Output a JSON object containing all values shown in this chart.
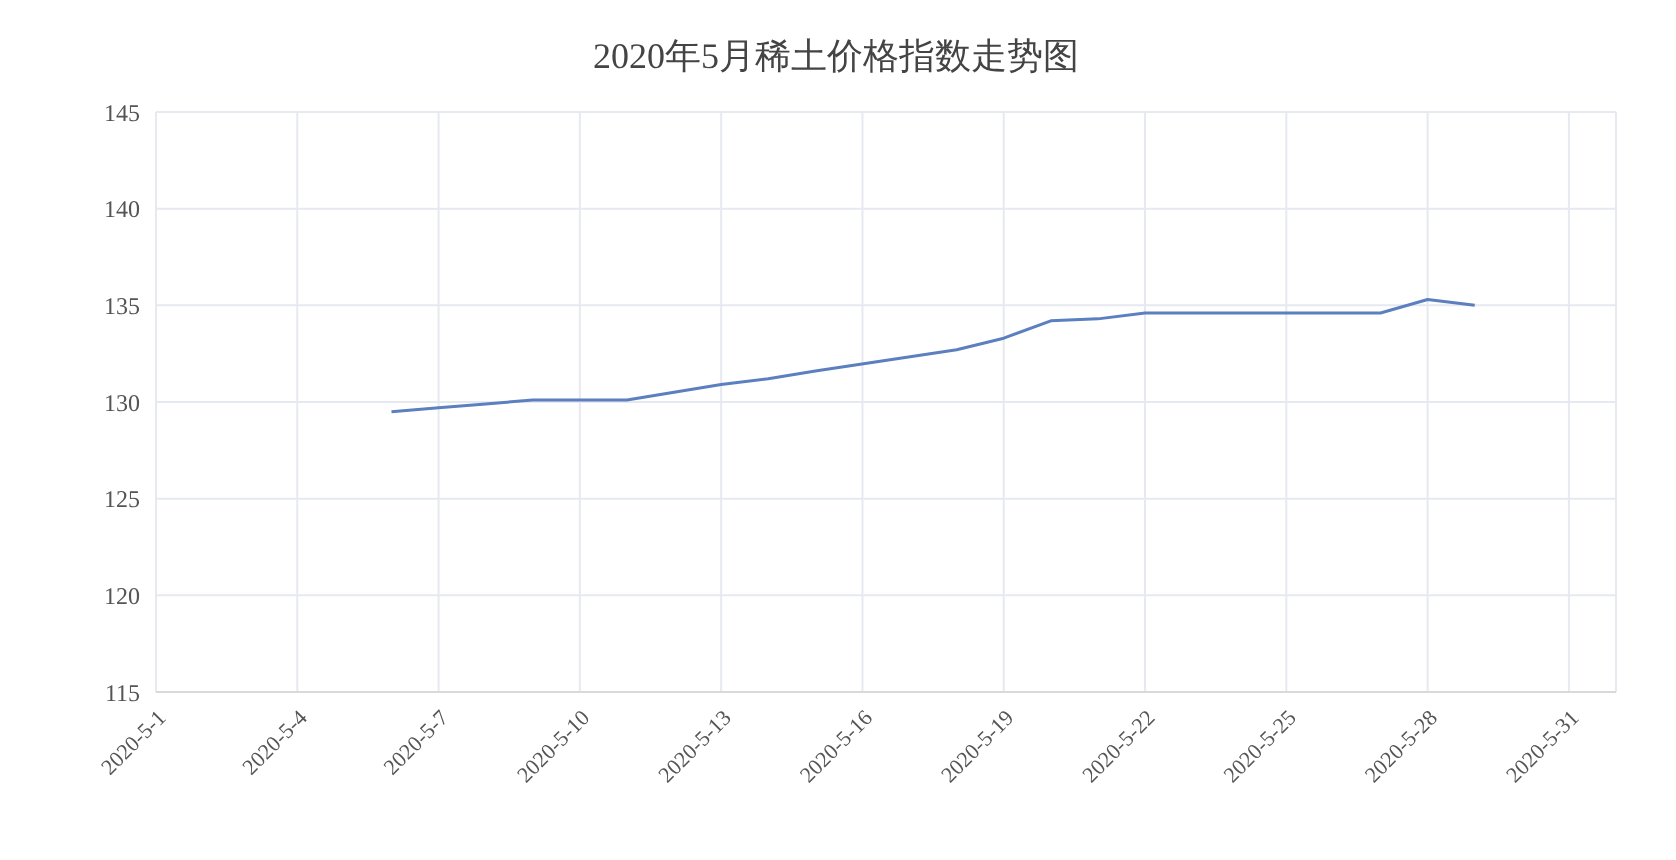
{
  "chart_data": {
    "type": "line",
    "title": "2020年5月稀土价格指数走势图",
    "x": [
      "2020-05-06",
      "2020-05-07",
      "2020-05-08",
      "2020-05-09",
      "2020-05-11",
      "2020-05-12",
      "2020-05-13",
      "2020-05-14",
      "2020-05-15",
      "2020-05-18",
      "2020-05-19",
      "2020-05-20",
      "2020-05-21",
      "2020-05-22",
      "2020-05-25",
      "2020-05-26",
      "2020-05-27",
      "2020-05-28",
      "2020-05-29"
    ],
    "series": [
      {
        "color": "#5b7fbf",
        "values": [
          129.5,
          129.7,
          129.9,
          130.1,
          130.1,
          130.5,
          130.9,
          131.2,
          131.6,
          132.7,
          133.3,
          134.2,
          134.3,
          134.6,
          134.6,
          134.6,
          134.6,
          135.3,
          135.0
        ]
      }
    ],
    "xlim": [
      "2020-05-01",
      "2020-06-01"
    ],
    "xticks": [
      {
        "value": "2020-05-01",
        "label": "2020-5-1"
      },
      {
        "value": "2020-05-04",
        "label": "2020-5-4"
      },
      {
        "value": "2020-05-07",
        "label": "2020-5-7"
      },
      {
        "value": "2020-05-10",
        "label": "2020-5-10"
      },
      {
        "value": "2020-05-13",
        "label": "2020-5-13"
      },
      {
        "value": "2020-05-16",
        "label": "2020-5-16"
      },
      {
        "value": "2020-05-19",
        "label": "2020-5-19"
      },
      {
        "value": "2020-05-22",
        "label": "2020-5-22"
      },
      {
        "value": "2020-05-25",
        "label": "2020-5-25"
      },
      {
        "value": "2020-05-28",
        "label": "2020-5-28"
      },
      {
        "value": "2020-05-31",
        "label": "2020-5-31"
      }
    ],
    "ylim": [
      115,
      145
    ],
    "yticks": [
      115,
      120,
      125,
      130,
      135,
      140,
      145
    ],
    "grid": true,
    "legend": false,
    "marker": "none",
    "line_style": "solid"
  }
}
